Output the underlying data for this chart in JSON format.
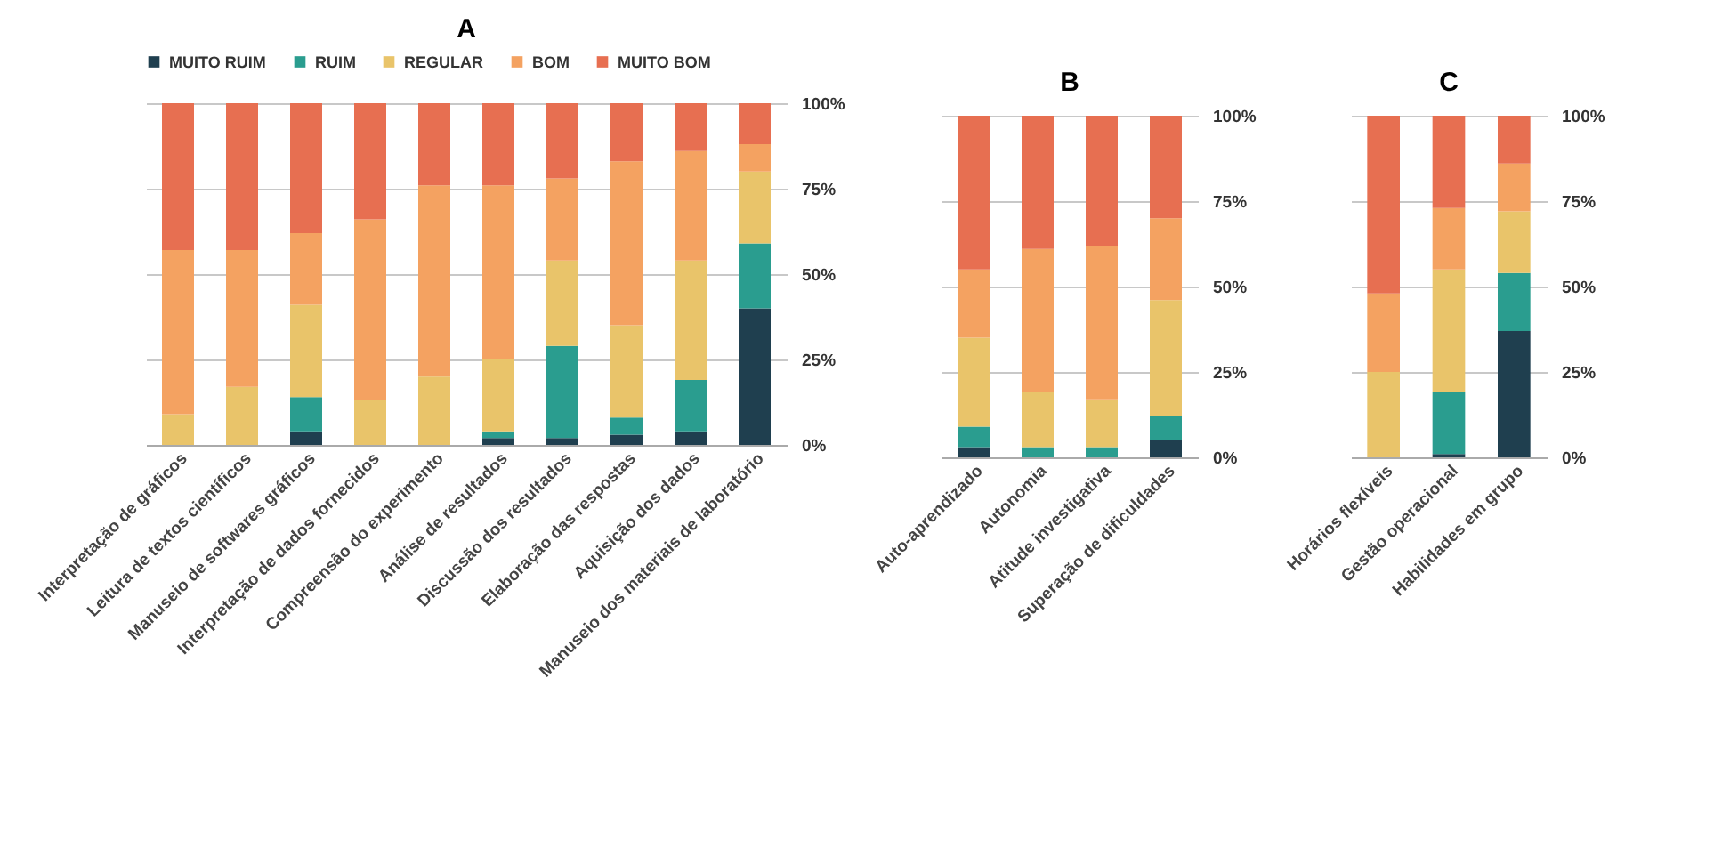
{
  "chart_data": [
    {
      "type": "bar",
      "title": "A",
      "stacked": true,
      "legend": "top",
      "grid": "y",
      "categories": [
        "Interpretação de gráficos",
        "Leitura de textos científicos",
        "Manuseio de softwares gráficos",
        "Interpretação de dados fornecidos",
        "Compreensão do experimento",
        "Análise de resultados",
        "Discussão dos resultados",
        "Elaboração das respostas",
        "Aquisição dos dados",
        "Manuseio dos materiais de laboratório"
      ],
      "ylim": [
        0,
        100
      ],
      "yticks": [
        {
          "value": 0,
          "label": "0%"
        },
        {
          "value": 25,
          "label": "25%"
        },
        {
          "value": 50,
          "label": "50%"
        },
        {
          "value": 75,
          "label": "75%"
        },
        {
          "value": 100,
          "label": "100%"
        }
      ],
      "series": [
        {
          "name": "MUITO RUIM",
          "color": "#1f3f4f",
          "values": [
            0,
            0,
            4,
            0,
            0,
            2,
            2,
            3,
            4,
            40
          ]
        },
        {
          "name": "RUIM",
          "color": "#2a9d8f",
          "values": [
            0,
            0,
            10,
            0,
            0,
            2,
            27,
            5,
            15,
            19
          ]
        },
        {
          "name": "REGULAR",
          "color": "#e9c46a",
          "values": [
            9,
            17,
            27,
            13,
            20,
            21,
            25,
            27,
            35,
            21
          ]
        },
        {
          "name": "BOM",
          "color": "#f4a261",
          "values": [
            48,
            40,
            21,
            53,
            56,
            51,
            24,
            48,
            32,
            8
          ]
        },
        {
          "name": "MUITO BOM",
          "color": "#e76f51",
          "values": [
            43,
            43,
            38,
            34,
            24,
            24,
            22,
            17,
            14,
            12
          ]
        }
      ]
    },
    {
      "type": "bar",
      "title": "B",
      "stacked": true,
      "grid": "y",
      "categories": [
        "Auto-aprendizado",
        "Autonomia",
        "Atitude investigativa",
        "Superação de dificuldades"
      ],
      "ylim": [
        0,
        100
      ],
      "yticks": [
        {
          "value": 0,
          "label": "0%"
        },
        {
          "value": 25,
          "label": "25%"
        },
        {
          "value": 50,
          "label": "50%"
        },
        {
          "value": 75,
          "label": "75%"
        },
        {
          "value": 100,
          "label": "100%"
        }
      ],
      "series": [
        {
          "color": "#1f3f4f",
          "values": [
            3,
            0,
            0,
            5
          ]
        },
        {
          "color": "#2a9d8f",
          "values": [
            6,
            3,
            3,
            7
          ]
        },
        {
          "color": "#e9c46a",
          "values": [
            26,
            16,
            14,
            34
          ]
        },
        {
          "color": "#f4a261",
          "values": [
            20,
            42,
            45,
            24
          ]
        },
        {
          "color": "#e76f51",
          "values": [
            45,
            39,
            38,
            30
          ]
        }
      ]
    },
    {
      "type": "bar",
      "title": "C",
      "stacked": true,
      "grid": "y",
      "categories": [
        "Horários flexíveis",
        "Gestão operacional",
        "Habilidades em grupo"
      ],
      "ylim": [
        0,
        100
      ],
      "yticks": [
        {
          "value": 0,
          "label": "0%"
        },
        {
          "value": 25,
          "label": "25%"
        },
        {
          "value": 50,
          "label": "50%"
        },
        {
          "value": 75,
          "label": "75%"
        },
        {
          "value": 100,
          "label": "100%"
        }
      ],
      "series": [
        {
          "color": "#1f3f4f",
          "values": [
            0,
            1,
            37
          ]
        },
        {
          "color": "#2a9d8f",
          "values": [
            0,
            18,
            17
          ]
        },
        {
          "color": "#e9c46a",
          "values": [
            25,
            36,
            18
          ]
        },
        {
          "color": "#f4a261",
          "values": [
            23,
            18,
            14
          ]
        },
        {
          "color": "#e76f51",
          "values": [
            52,
            27,
            14
          ]
        }
      ]
    }
  ]
}
